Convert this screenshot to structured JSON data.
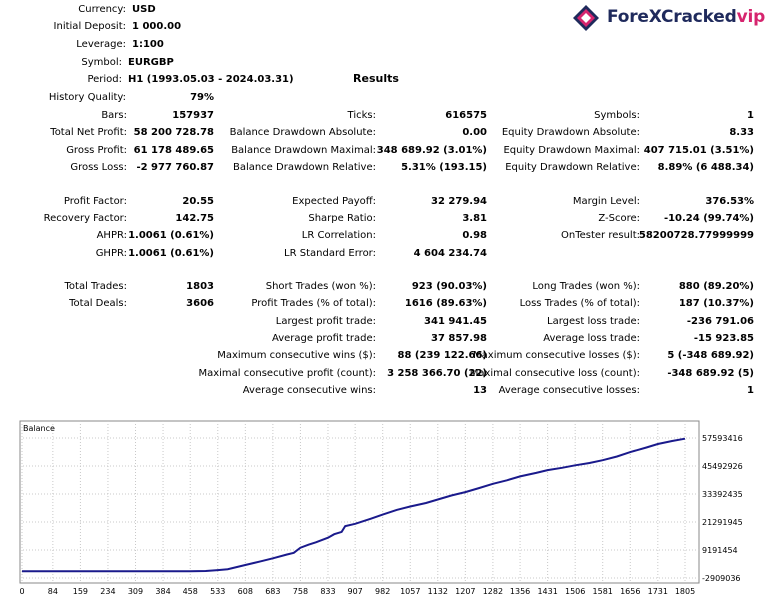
{
  "logo": {
    "brand_main": "ForeXCracked",
    "brand_accent": "vip"
  },
  "header": {
    "currency": {
      "label": "Currency:",
      "value": "USD"
    },
    "initial_deposit": {
      "label": "Initial Deposit:",
      "value": "1 000.00"
    },
    "leverage": {
      "label": "Leverage:",
      "value": "1:100"
    },
    "symbol": {
      "label": "Symbol:",
      "value": "EURGBP"
    },
    "period": {
      "label": "Period:",
      "value": "H1 (1993.05.03 - 2024.03.31)"
    }
  },
  "results_heading": "Results",
  "history_quality": {
    "label": "History Quality:",
    "value": "79%"
  },
  "stats": {
    "bars": {
      "label": "Bars:",
      "value": "157937"
    },
    "ticks": {
      "label": "Ticks:",
      "value": "616575"
    },
    "symbols": {
      "label": "Symbols:",
      "value": "1"
    },
    "total_net_profit": {
      "label": "Total Net Profit:",
      "value": "58 200 728.78"
    },
    "balance_dd_abs": {
      "label": "Balance Drawdown Absolute:",
      "value": "0.00"
    },
    "equity_dd_abs": {
      "label": "Equity Drawdown Absolute:",
      "value": "8.33"
    },
    "gross_profit": {
      "label": "Gross Profit:",
      "value": "61 178 489.65"
    },
    "balance_dd_max": {
      "label": "Balance Drawdown Maximal:",
      "value": "348 689.92 (3.01%)"
    },
    "equity_dd_max": {
      "label": "Equity Drawdown Maximal:",
      "value": "407 715.01 (3.51%)"
    },
    "gross_loss": {
      "label": "Gross Loss:",
      "value": "-2 977 760.87"
    },
    "balance_dd_rel": {
      "label": "Balance Drawdown Relative:",
      "value": "5.31% (193.15)"
    },
    "equity_dd_rel": {
      "label": "Equity Drawdown Relative:",
      "value": "8.89% (6 488.34)"
    },
    "profit_factor": {
      "label": "Profit Factor:",
      "value": "20.55"
    },
    "expected_payoff": {
      "label": "Expected Payoff:",
      "value": "32 279.94"
    },
    "margin_level": {
      "label": "Margin Level:",
      "value": "376.53%"
    },
    "recovery_factor": {
      "label": "Recovery Factor:",
      "value": "142.75"
    },
    "sharpe_ratio": {
      "label": "Sharpe Ratio:",
      "value": "3.81"
    },
    "z_score": {
      "label": "Z-Score:",
      "value": "-10.24 (99.74%)"
    },
    "ahpr": {
      "label": "AHPR:",
      "value": "1.0061 (0.61%)"
    },
    "lr_correlation": {
      "label": "LR Correlation:",
      "value": "0.98"
    },
    "ontester_result": {
      "label": "OnTester result:",
      "value": "58200728.77999999"
    },
    "ghpr": {
      "label": "GHPR:",
      "value": "1.0061 (0.61%)"
    },
    "lr_std_error": {
      "label": "LR Standard Error:",
      "value": "4 604 234.74"
    },
    "total_trades": {
      "label": "Total Trades:",
      "value": "1803"
    },
    "short_trades": {
      "label": "Short Trades (won %):",
      "value": "923 (90.03%)"
    },
    "long_trades": {
      "label": "Long Trades (won %):",
      "value": "880 (89.20%)"
    },
    "total_deals": {
      "label": "Total Deals:",
      "value": "3606"
    },
    "profit_trades": {
      "label": "Profit Trades (% of total):",
      "value": "1616 (89.63%)"
    },
    "loss_trades": {
      "label": "Loss Trades (% of total):",
      "value": "187 (10.37%)"
    },
    "largest_profit": {
      "label": "Largest profit trade:",
      "value": "341 941.45"
    },
    "largest_loss": {
      "label": "Largest loss trade:",
      "value": "-236 791.06"
    },
    "average_profit": {
      "label": "Average profit trade:",
      "value": "37 857.98"
    },
    "average_loss": {
      "label": "Average loss trade:",
      "value": "-15 923.85"
    },
    "max_consec_wins": {
      "label": "Maximum consecutive wins ($):",
      "value": "88 (239 122.66)"
    },
    "max_consec_losses": {
      "label": "Maximum consecutive losses ($):",
      "value": "5 (-348 689.92)"
    },
    "maximal_consec_profit": {
      "label": "Maximal consecutive profit (count):",
      "value": "3 258 366.70 (22)"
    },
    "maximal_consec_loss": {
      "label": "Maximal consecutive loss (count):",
      "value": "-348 689.92 (5)"
    },
    "avg_consec_wins": {
      "label": "Average consecutive wins:",
      "value": "13"
    },
    "avg_consec_losses": {
      "label": "Average consecutive losses:",
      "value": "1"
    }
  },
  "chart_data": {
    "type": "line",
    "title": "Balance",
    "x_ticks": [
      "0",
      "84",
      "159",
      "234",
      "309",
      "384",
      "458",
      "533",
      "608",
      "683",
      "758",
      "833",
      "907",
      "982",
      "1057",
      "1132",
      "1207",
      "1282",
      "1356",
      "1431",
      "1506",
      "1581",
      "1656",
      "1731",
      "1805"
    ],
    "y_ticks": [
      "57593416",
      "45492926",
      "33392435",
      "21291945",
      "9191454",
      "-2909036"
    ],
    "xlim": [
      0,
      1805
    ],
    "ylim": [
      -2909036,
      57593416
    ],
    "grid": true,
    "series": [
      {
        "color": "#1a1a8c",
        "x": [
          0,
          84,
          159,
          234,
          309,
          384,
          458,
          500,
          533,
          560,
          608,
          650,
          683,
          720,
          740,
          758,
          780,
          800,
          833,
          850,
          870,
          880,
          907,
          950,
          982,
          1020,
          1057,
          1100,
          1132,
          1170,
          1207,
          1245,
          1282,
          1320,
          1356,
          1400,
          1431,
          1470,
          1506,
          1545,
          1581,
          1620,
          1656,
          1700,
          1731,
          1770,
          1805
        ],
        "y": [
          1000,
          1000,
          1000,
          1000,
          1000,
          1000,
          1000,
          100000,
          500000,
          900000,
          2700000,
          4300000,
          5600000,
          7200000,
          8000000,
          10200000,
          11500000,
          12500000,
          14500000,
          16000000,
          17000000,
          19500000,
          20500000,
          22700000,
          24500000,
          26500000,
          28000000,
          29500000,
          31000000,
          32800000,
          34200000,
          36000000,
          37800000,
          39300000,
          41000000,
          42500000,
          43700000,
          44700000,
          45800000,
          46800000,
          48000000,
          49600000,
          51500000,
          53500000,
          55000000,
          56300000,
          57300000
        ]
      }
    ]
  }
}
